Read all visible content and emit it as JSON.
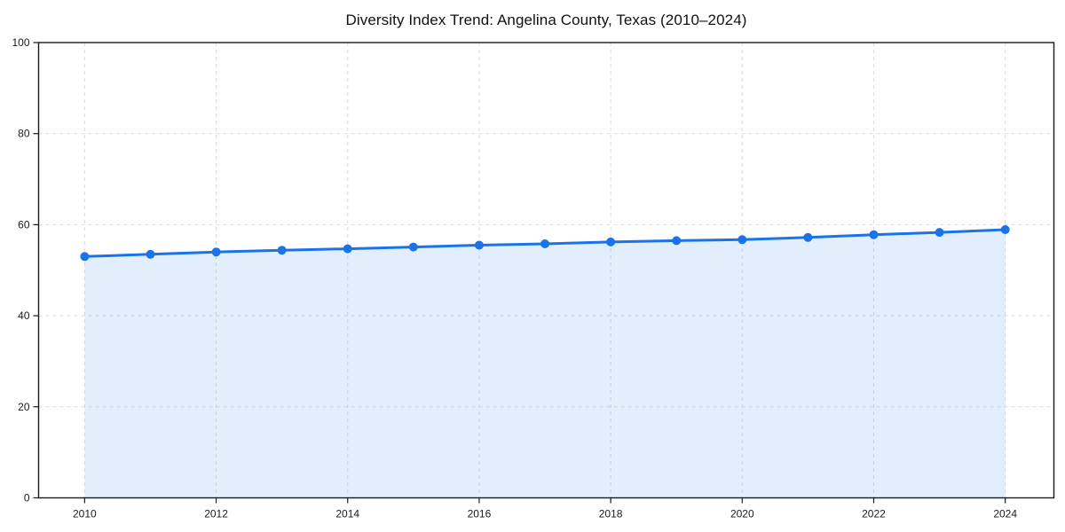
{
  "chart_data": {
    "type": "area",
    "title": "Diversity Index Trend: Angelina County, Texas (2010–2024)",
    "x": [
      2010,
      2011,
      2012,
      2013,
      2014,
      2015,
      2016,
      2017,
      2018,
      2019,
      2020,
      2021,
      2022,
      2023,
      2024
    ],
    "series": [
      {
        "name": "Diversity Index",
        "values": [
          53.0,
          53.5,
          54.0,
          54.4,
          54.7,
          55.1,
          55.5,
          55.8,
          56.2,
          56.5,
          56.7,
          57.2,
          57.8,
          58.3,
          58.9
        ]
      }
    ],
    "xlabel": "",
    "ylabel": "",
    "ylim": [
      0,
      100
    ],
    "y_ticks": [
      0,
      20,
      40,
      60,
      80,
      100
    ],
    "x_ticks": [
      2010,
      2012,
      2014,
      2016,
      2018,
      2020,
      2022,
      2024
    ],
    "grid": true,
    "grid_style": "dashed",
    "legend": "none",
    "line_color": "#1a73e8",
    "marker_color": "#1a73e8",
    "fill_color": "rgba(26,115,232,0.12)",
    "grid_color": "#dcdcdc",
    "axis_color": "#1a1a1a",
    "tick_label_color": "#1a1a1a"
  }
}
